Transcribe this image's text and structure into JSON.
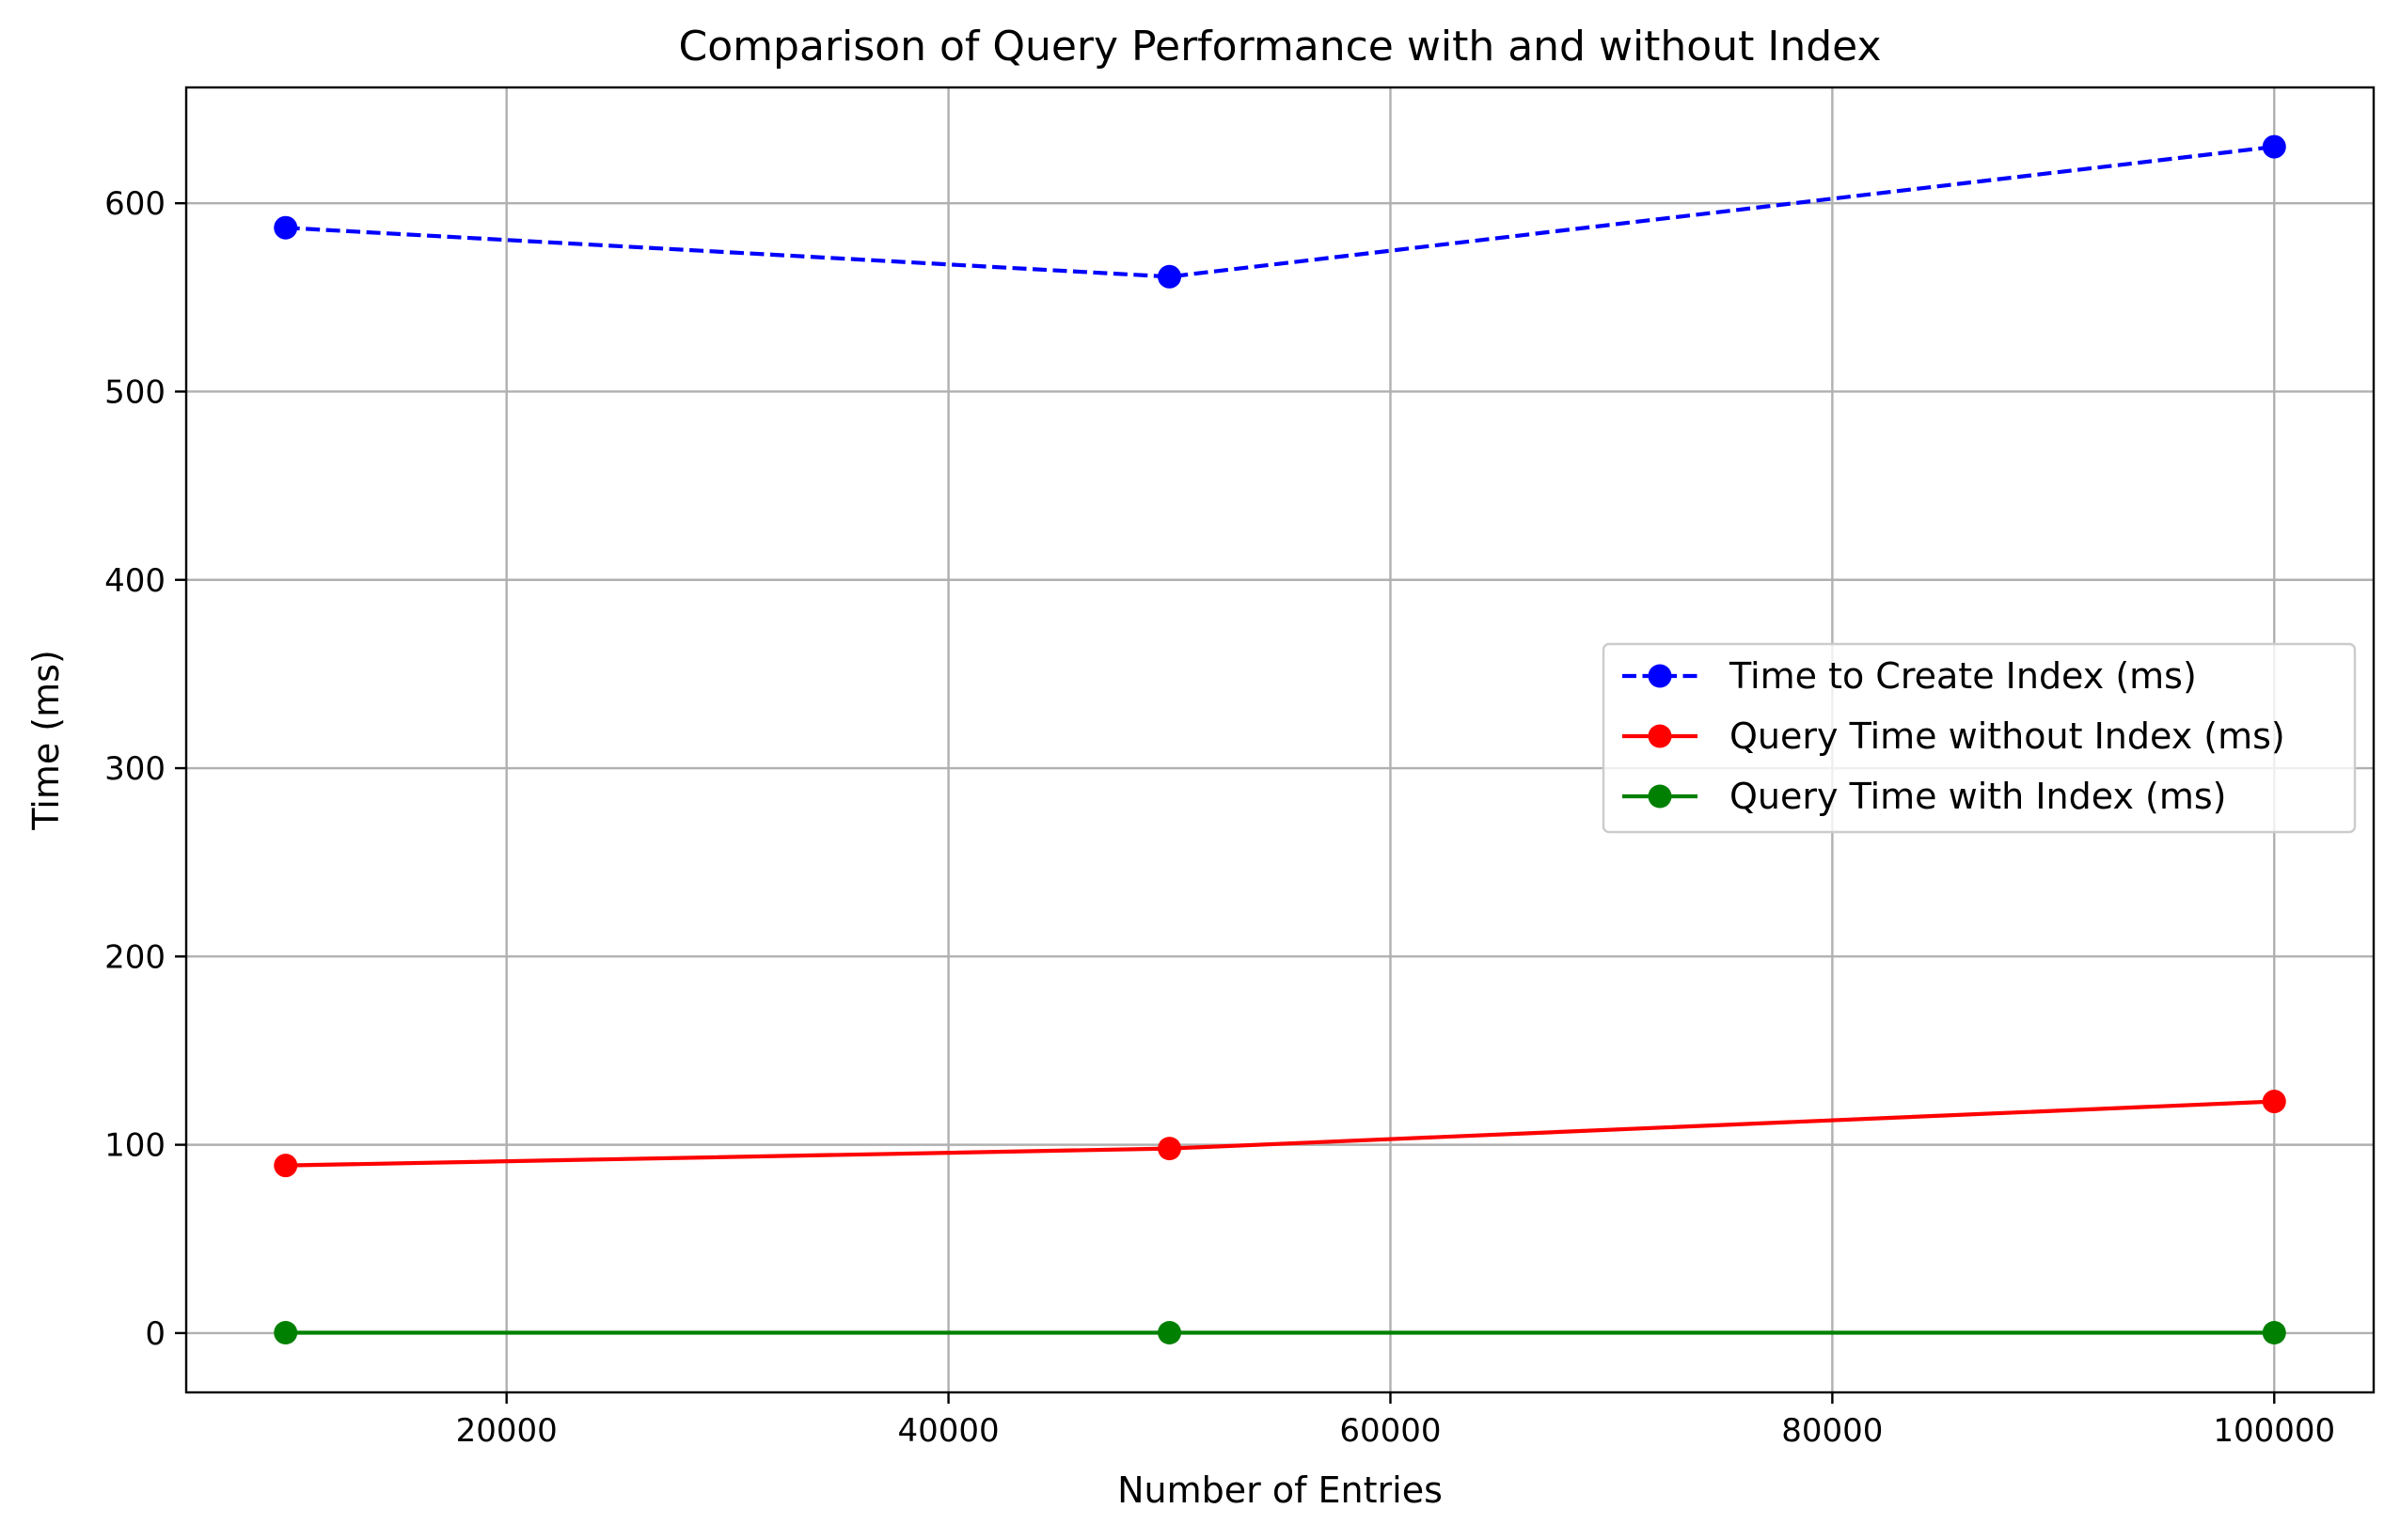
{
  "chart_data": {
    "type": "line",
    "title": "Comparison of Query Performance with and without Index",
    "xlabel": "Number of Entries",
    "ylabel": "Time (ms)",
    "x": [
      10000,
      50000,
      100000
    ],
    "xlim": [
      5500,
      104500
    ],
    "ylim": [
      -31.5,
      661.5
    ],
    "xticks": [
      20000,
      40000,
      60000,
      80000,
      100000
    ],
    "yticks": [
      0,
      100,
      200,
      300,
      400,
      500,
      600
    ],
    "grid": true,
    "legend_position": "center-right",
    "series": [
      {
        "name": "Time to Create Index (ms)",
        "values": [
          587,
          561,
          630
        ],
        "color": "#0000ff",
        "linestyle": "dashed",
        "marker": "circle"
      },
      {
        "name": "Query Time without Index (ms)",
        "values": [
          89,
          98,
          123
        ],
        "color": "#ff0000",
        "linestyle": "solid",
        "marker": "circle"
      },
      {
        "name": "Query Time with Index (ms)",
        "values": [
          0.2,
          0.2,
          0.2
        ],
        "color": "#008000",
        "linestyle": "solid",
        "marker": "circle"
      }
    ]
  }
}
